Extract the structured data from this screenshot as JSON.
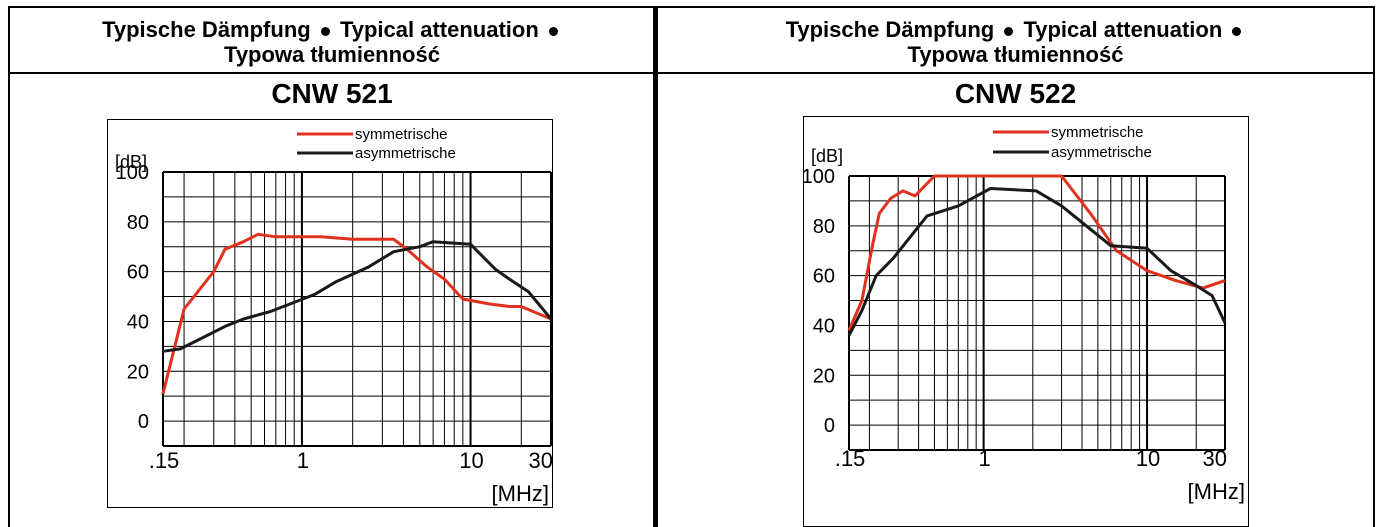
{
  "panels": [
    {
      "heading_line1_part1": "Typische Dämpfung",
      "heading_line1_part2": "Typical attenuation",
      "heading_line2": "Typowa tłumienność",
      "model": "CNW  521"
    },
    {
      "heading_line1_part1": "Typische Dämpfung",
      "heading_line1_part2": "Typical attenuation",
      "heading_line2": "Typowa tłumienność",
      "model": "CNW  522"
    }
  ],
  "chart_data": [
    {
      "type": "line",
      "title": "CNW  521",
      "ylabel": "[dB]",
      "xlabel": "[MHz]",
      "x_scale": "log",
      "xlim": [
        0.15,
        30
      ],
      "ylim": [
        -10,
        100
      ],
      "x_ticks": [
        0.15,
        1,
        10,
        30
      ],
      "x_tick_labels": [
        ".15",
        "1",
        "10",
        "30"
      ],
      "y_ticks": [
        0,
        20,
        40,
        60,
        80,
        100
      ],
      "y_tick_labels": [
        "0",
        "20",
        "40",
        "60",
        "80",
        "100"
      ],
      "grid": true,
      "legend_position": "top-right",
      "series": [
        {
          "name": "symmetrische",
          "color": "#e0301e",
          "points": [
            [
              0.15,
              11
            ],
            [
              0.2,
              45
            ],
            [
              0.3,
              60
            ],
            [
              0.35,
              69
            ],
            [
              0.45,
              72
            ],
            [
              0.55,
              75
            ],
            [
              0.7,
              74
            ],
            [
              0.9,
              74
            ],
            [
              1.3,
              74
            ],
            [
              2,
              73
            ],
            [
              3,
              73
            ],
            [
              3.5,
              73
            ],
            [
              4.2,
              69
            ],
            [
              5.5,
              62
            ],
            [
              7,
              57
            ],
            [
              9,
              49
            ],
            [
              13,
              47
            ],
            [
              17,
              46
            ],
            [
              20,
              46
            ],
            [
              30,
              41
            ]
          ]
        },
        {
          "name": "asymmetrische",
          "color": "#1a1a1a",
          "points": [
            [
              0.15,
              28
            ],
            [
              0.19,
              29
            ],
            [
              0.25,
              33
            ],
            [
              0.35,
              38
            ],
            [
              0.45,
              41
            ],
            [
              0.65,
              44
            ],
            [
              0.85,
              47
            ],
            [
              1.2,
              51
            ],
            [
              1.6,
              56
            ],
            [
              2.5,
              62
            ],
            [
              3.5,
              68
            ],
            [
              5,
              70
            ],
            [
              6,
              72
            ],
            [
              10,
              71
            ],
            [
              14,
              61
            ],
            [
              17,
              57
            ],
            [
              22,
              52
            ],
            [
              30,
              41
            ]
          ]
        }
      ]
    },
    {
      "type": "line",
      "title": "CNW  522",
      "ylabel": "[dB]",
      "xlabel": "[MHz]",
      "x_scale": "log",
      "xlim": [
        0.15,
        30
      ],
      "ylim": [
        -10,
        100
      ],
      "x_ticks": [
        0.15,
        1,
        10,
        30
      ],
      "x_tick_labels": [
        ".15",
        "1",
        "10",
        "30"
      ],
      "y_ticks": [
        0,
        20,
        40,
        60,
        80,
        100
      ],
      "y_tick_labels": [
        "0",
        "20",
        "40",
        "60",
        "80",
        "100"
      ],
      "grid": true,
      "legend_position": "top-right",
      "series": [
        {
          "name": "symmetrische",
          "color": "#e0301e",
          "points": [
            [
              0.15,
              38
            ],
            [
              0.18,
              50
            ],
            [
              0.21,
              73
            ],
            [
              0.23,
              85
            ],
            [
              0.27,
              91
            ],
            [
              0.32,
              94
            ],
            [
              0.38,
              92
            ],
            [
              0.5,
              100
            ],
            [
              0.8,
              100
            ],
            [
              1,
              100
            ],
            [
              2,
              100
            ],
            [
              3,
              100
            ],
            [
              4.5,
              85
            ],
            [
              6.5,
              70
            ],
            [
              10,
              62
            ],
            [
              15,
              58
            ],
            [
              22,
              55
            ],
            [
              30,
              58
            ]
          ]
        },
        {
          "name": "asymmetrische",
          "color": "#1a1a1a",
          "points": [
            [
              0.15,
              36
            ],
            [
              0.18,
              46
            ],
            [
              0.22,
              60
            ],
            [
              0.28,
              67
            ],
            [
              0.45,
              84
            ],
            [
              0.7,
              88
            ],
            [
              1.1,
              95
            ],
            [
              2.1,
              94
            ],
            [
              3,
              88
            ],
            [
              6,
              72
            ],
            [
              10,
              71
            ],
            [
              14,
              62
            ],
            [
              20,
              56
            ],
            [
              25,
              52
            ],
            [
              30,
              41
            ]
          ]
        }
      ]
    }
  ]
}
